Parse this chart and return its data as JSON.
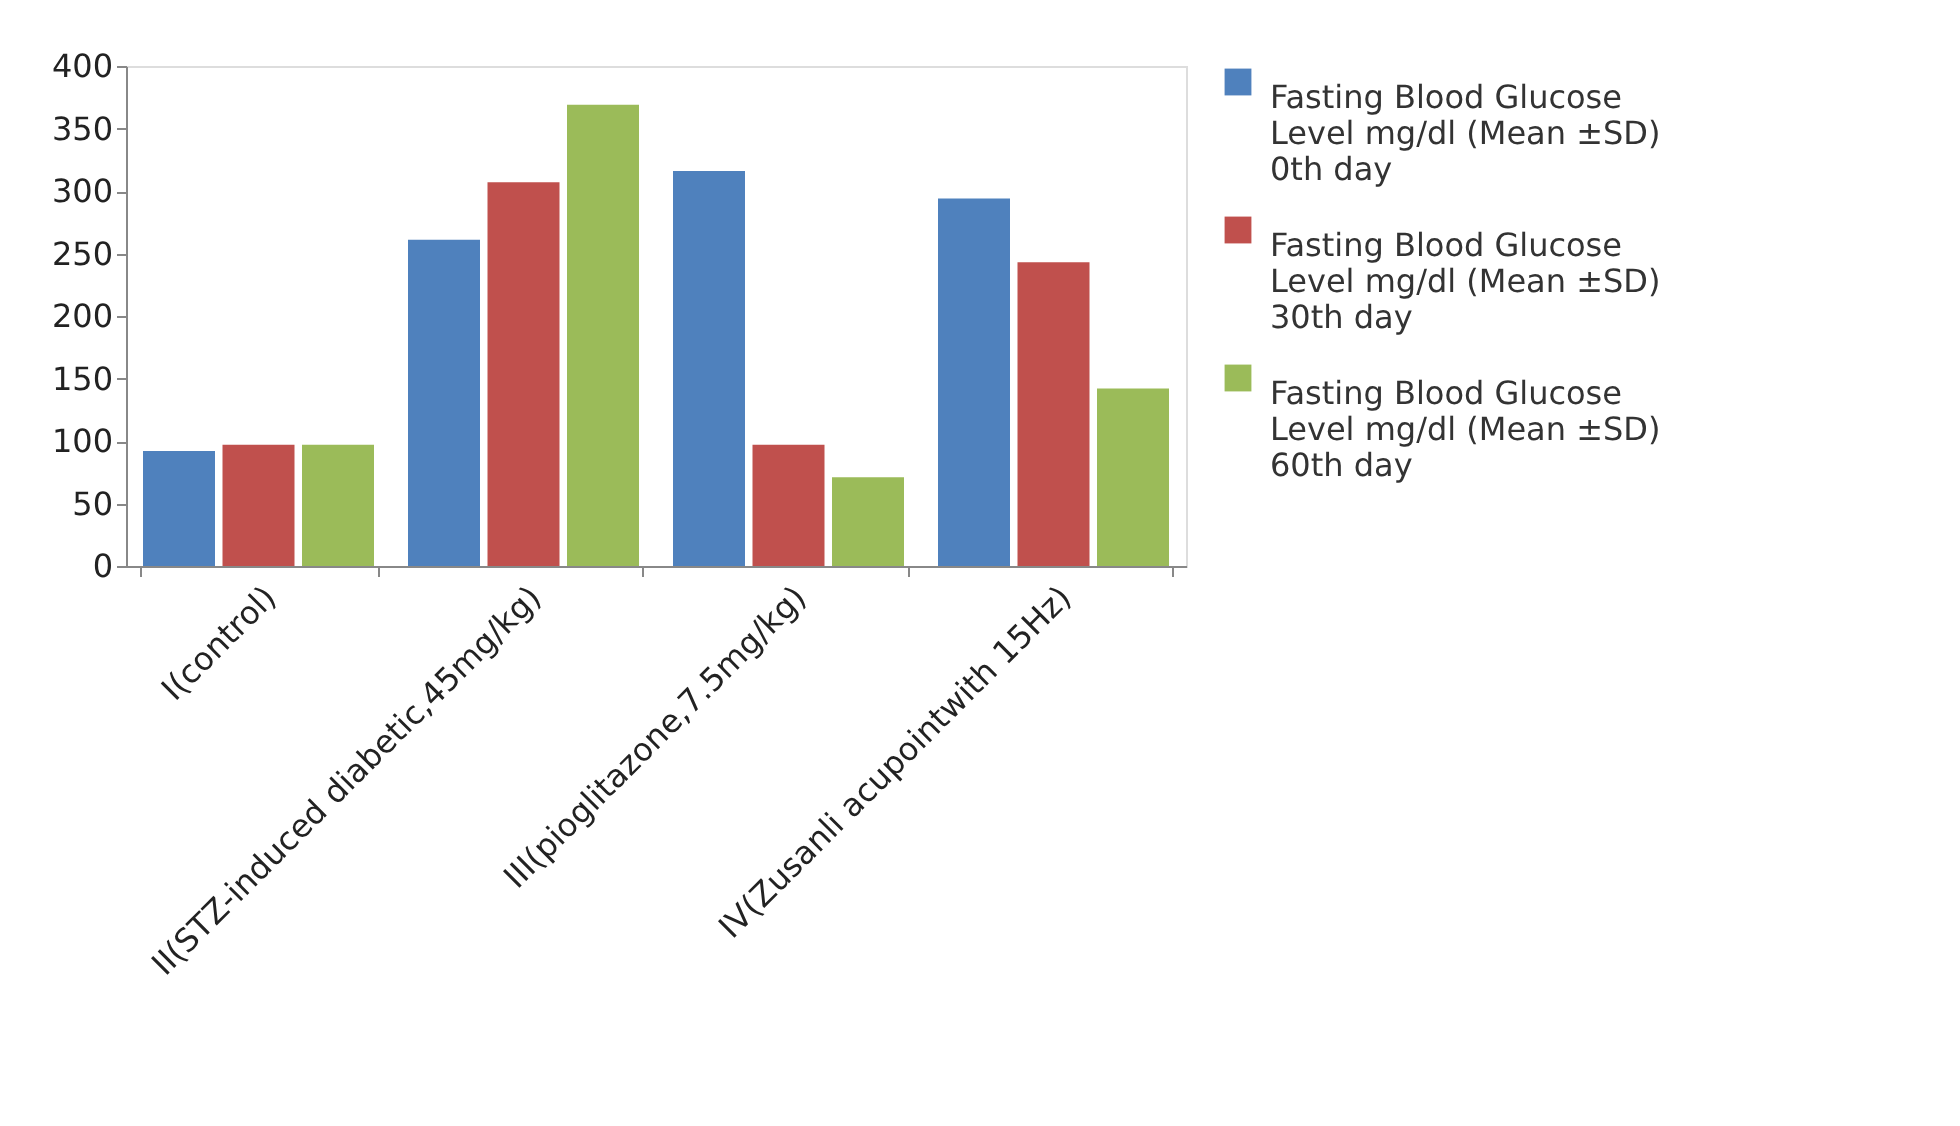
{
  "chart_data": {
    "type": "bar",
    "categories": [
      "I(control)",
      "II(STZ-induced diabetic,45mg/kg)",
      "III(pioglitazone,7.5mg/kg)",
      "IV(Zusanli acupointwith 15Hz)"
    ],
    "series": [
      {
        "name": "Fasting Blood Glucose Level mg/dl (Mean ±SD) 0th day",
        "color": "#4f81bd",
        "values": [
          92,
          261,
          316,
          294
        ]
      },
      {
        "name": "Fasting Blood Glucose Level mg/dl (Mean ±SD) 30th day",
        "color": "#c0504d",
        "values": [
          97,
          307,
          97,
          243
        ]
      },
      {
        "name": "Fasting Blood Glucose Level mg/dl (Mean ±SD) 60th day",
        "color": "#9bbb59",
        "values": [
          97,
          369,
          71,
          142
        ]
      }
    ],
    "ylim": [
      0,
      400
    ],
    "yticks": [
      0,
      50,
      100,
      150,
      200,
      250,
      300,
      350,
      400
    ],
    "grid": false,
    "legend": "right"
  }
}
